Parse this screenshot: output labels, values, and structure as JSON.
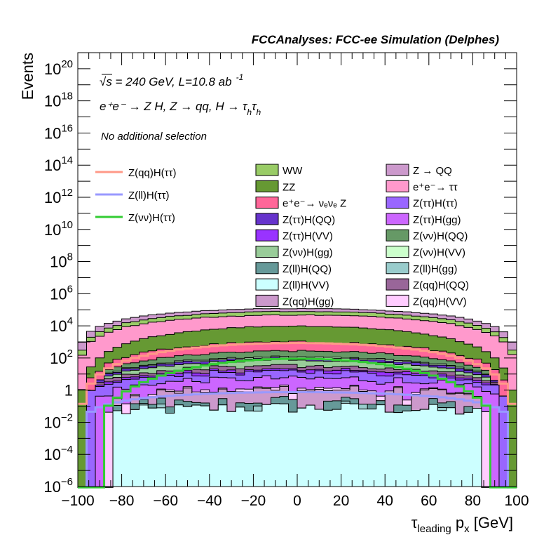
{
  "chart_data": {
    "type": "bar",
    "subtype": "stacked-histogram-log",
    "title": "FCCAnalyses: FCC-ee Simulation (Delphes)",
    "xlabel": "τ_leading p_x [GeV]",
    "xlabel_main": "τ",
    "xlabel_sub": "leading",
    "xlabel_rest": " p",
    "xlabel_sub2": "x",
    "xlabel_unit": " [GeV]",
    "ylabel": "Events",
    "xlim": [
      -100,
      100
    ],
    "ylim": [
      1e-06,
      1e+21
    ],
    "yscale": "log",
    "bin_width": 4,
    "x_ticks": [
      "−100",
      "−80",
      "−60",
      "−40",
      "−20",
      "0",
      "20",
      "40",
      "60",
      "80",
      "100"
    ],
    "y_ticks": [
      {
        "base": "10",
        "exp": "20"
      },
      {
        "base": "10",
        "exp": "18"
      },
      {
        "base": "10",
        "exp": "16"
      },
      {
        "base": "10",
        "exp": "14"
      },
      {
        "base": "10",
        "exp": "12"
      },
      {
        "base": "10",
        "exp": "10"
      },
      {
        "base": "10",
        "exp": "8"
      },
      {
        "base": "10",
        "exp": "6"
      },
      {
        "base": "10",
        "exp": "4"
      },
      {
        "base": "10",
        "exp": "2"
      },
      {
        "base": "1",
        "exp": ""
      },
      {
        "base": "10",
        "exp": "−2"
      },
      {
        "base": "10",
        "exp": "−4"
      },
      {
        "base": "10",
        "exp": "−6"
      }
    ],
    "annotations": {
      "energy": "√s = 240 GeV, L=10.8 ab",
      "energy_exp": "-1",
      "process": "e⁺e⁻ → Z H, Z → qq, H → τ",
      "process_sub": "h",
      "process_tau2": "τ",
      "selection": "No additional selection"
    },
    "legend_placement": "top (inside plot)",
    "stack_bottom_to_top": [
      {
        "name": "Z(ll)H(VV)",
        "color": "#ccffff",
        "center": 0.08,
        "power": 0.6,
        "range": 82,
        "noise": 0.35,
        "sparse": 0.0
      },
      {
        "name": "Z(ll)H(gg)",
        "color": "#99cccc",
        "center": 0.06,
        "power": 0.6,
        "range": 70,
        "noise": 0.3,
        "sparse": 0.75
      },
      {
        "name": "Z(ll)H(QQ)",
        "color": "#669999",
        "center": 0.12,
        "power": 0.8,
        "range": 82,
        "noise": 0.35,
        "sparse": 0.35
      },
      {
        "name": "Z(qq)H(gg)",
        "color": "#cc99cc",
        "center": 0.9,
        "power": 1.2,
        "range": 82,
        "noise": 0.3,
        "sparse": 0.1
      },
      {
        "name": "Z(qq)H(VV)",
        "color": "#ffccff",
        "center": 0.3,
        "power": 1.5,
        "range": 86,
        "noise": 0.2,
        "sparse": 0.0
      },
      {
        "name": "Z(ττ)H(gg)",
        "color": "#cc66ff",
        "center": 4,
        "power": 1.4,
        "range": 92,
        "noise": 0.25,
        "sparse": 0.0
      },
      {
        "name": "Z(ττ)H(ττ)",
        "color": "#9966ff",
        "center": 8,
        "power": 1.2,
        "range": 96,
        "noise": 0.2,
        "sparse": 0.0
      },
      {
        "name": "Z(ττ)H(VV)",
        "color": "#9933ff",
        "center": 5,
        "power": 1.5,
        "range": 92,
        "noise": 0.2,
        "sparse": 0.0
      },
      {
        "name": "Z(qq)H(QQ)",
        "color": "#996699",
        "center": 12,
        "power": 1.6,
        "range": 92,
        "noise": 0.2,
        "sparse": 0.0
      },
      {
        "name": "Z(νν)H(gg)",
        "color": "#99cc99",
        "center": 40,
        "power": 2.2,
        "range": 88,
        "noise": 0.1,
        "sparse": 0.0
      },
      {
        "name": "Z(ττ)H(QQ)",
        "color": "#6633cc",
        "center": 25,
        "power": 1.8,
        "range": 92,
        "noise": 0.15,
        "sparse": 0.0
      },
      {
        "name": "Z(νν)H(VV)",
        "color": "#ccffcc",
        "center": 20,
        "power": 2.2,
        "range": 88,
        "noise": 0.1,
        "sparse": 0.0
      },
      {
        "name": "Z(νν)H(QQ)",
        "color": "#669966",
        "center": 150,
        "power": 2.3,
        "range": 88,
        "noise": 0.08,
        "sparse": 0.0
      },
      {
        "name": "e⁺e⁻→ νₑνₑ Z",
        "color": "#ff6699",
        "center": 700,
        "power": 2.4,
        "range": 96,
        "noise": 0.1,
        "sparse": 0.0
      },
      {
        "name": "ZZ",
        "color": "#669933",
        "center": 8600,
        "power": 2.8,
        "range": 100,
        "noise": 0.03,
        "sparse": 0.0
      },
      {
        "name": "e⁺e⁻→ ττ",
        "color": "#ff99cc",
        "center": 38000,
        "power": 1.7,
        "range": 100,
        "noise": 0.03,
        "sparse": 0.0
      },
      {
        "name": "WW",
        "color": "#99cc66",
        "center": 31000,
        "power": 1.65,
        "range": 100,
        "noise": 0.03,
        "sparse": 0.0
      },
      {
        "name": "Z → QQ",
        "color": "#cc99cc",
        "center": 41000,
        "power": 1.3,
        "range": 100,
        "noise": 0.03,
        "sparse": 0.0
      }
    ],
    "overlay_lines": [
      {
        "name": "Z(qq)H(ττ)",
        "color": "#ff9988",
        "center": 850,
        "power": 2.7,
        "range": 100
      },
      {
        "name": "Z(ll)H(ττ)",
        "color": "#9999ff",
        "center": 0.75,
        "power": 1.3,
        "range": 94
      },
      {
        "name": "Z(νν)H(ττ)",
        "color": "#33cc33",
        "center": 90,
        "power": 5,
        "range": 88
      }
    ],
    "legend_columns": [
      [
        "WW",
        "ZZ",
        "e⁺e⁻→ νₑνₑ Z",
        "Z(ττ)H(QQ)",
        "Z(ττ)H(VV)",
        "Z(νν)H(gg)",
        "Z(ll)H(QQ)",
        "Z(ll)H(VV)",
        "Z(qq)H(gg)"
      ],
      [
        "Z → QQ",
        "e⁺e⁻→ ττ",
        "Z(ττ)H(ττ)",
        "Z(ττ)H(gg)",
        "Z(νν)H(QQ)",
        "Z(νν)H(VV)",
        "Z(ll)H(gg)",
        "Z(qq)H(QQ)",
        "Z(qq)H(VV)"
      ]
    ]
  }
}
